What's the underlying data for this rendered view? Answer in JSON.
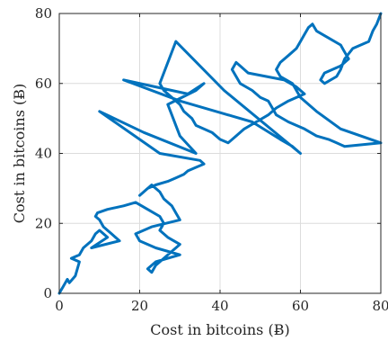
{
  "chart_data": {
    "type": "line",
    "xlabel": "Cost in bitcoins (Ƀ)",
    "ylabel": "Cost in bitcoins (Ƀ)",
    "xlim": [
      0,
      80
    ],
    "ylim": [
      0,
      80
    ],
    "xticks": [
      "0",
      "20",
      "40",
      "60",
      "80"
    ],
    "yticks": [
      "0",
      "20",
      "40",
      "60",
      "80"
    ],
    "grid": true,
    "series": [
      {
        "color": "#0072bd",
        "x": [
          0,
          0.5,
          1,
          2,
          2.5,
          4,
          5,
          3,
          5,
          6,
          8,
          9,
          10,
          12,
          8,
          15,
          13,
          11,
          10,
          9,
          9.5,
          12,
          16,
          19,
          22,
          25,
          26,
          25,
          27,
          30,
          28,
          26,
          24,
          23,
          22,
          24,
          27,
          30,
          24,
          20,
          19,
          23,
          30,
          29,
          28,
          26,
          25,
          23,
          20,
          21,
          22,
          24,
          27,
          29,
          31,
          32,
          34,
          36,
          35,
          25,
          10,
          21,
          34,
          30,
          29,
          28,
          27,
          34,
          36,
          32,
          16,
          30,
          48,
          55,
          58,
          60,
          41,
          29,
          25,
          26,
          30,
          31,
          33,
          34,
          38,
          40,
          42,
          44,
          46,
          49,
          52,
          54,
          57,
          61,
          59,
          56,
          47,
          45,
          44,
          43,
          44,
          45,
          48,
          50,
          52,
          53,
          54,
          57,
          61,
          64,
          67,
          69,
          71,
          80,
          70,
          64,
          60,
          58,
          55,
          54,
          55,
          57,
          59,
          60,
          61,
          62,
          63,
          64,
          67,
          70,
          71,
          72,
          70,
          66,
          65,
          66,
          69,
          70,
          71,
          73,
          77,
          78,
          79,
          80
        ],
        "y": [
          0,
          1,
          2,
          4,
          3,
          5,
          9,
          10,
          11,
          13,
          15,
          17,
          18,
          16,
          13,
          15,
          17,
          19,
          21,
          22,
          23,
          24,
          25,
          26,
          24,
          22,
          20,
          18,
          16,
          14,
          12,
          10,
          8,
          6,
          7,
          9,
          10,
          11,
          13,
          15,
          17,
          19,
          21,
          23,
          25,
          27,
          29,
          31,
          28,
          29,
          30,
          31,
          32,
          33,
          34,
          35,
          36,
          37,
          38,
          40,
          52,
          46,
          40,
          45,
          48,
          51,
          54,
          58,
          60,
          57,
          61,
          55,
          49,
          44,
          42,
          40,
          58,
          72,
          60,
          58,
          54,
          52,
          50,
          48,
          46,
          44,
          43,
          45,
          47,
          49,
          51,
          53,
          55,
          57,
          59,
          61,
          63,
          65,
          66,
          64,
          62,
          60,
          58,
          56,
          55,
          53,
          51,
          49,
          47,
          45,
          44,
          43,
          42,
          43,
          47,
          52,
          56,
          60,
          62,
          64,
          66,
          68,
          70,
          72,
          74,
          76,
          77,
          75,
          73,
          71,
          69,
          67,
          65,
          63,
          61,
          60,
          62,
          64,
          67,
          70,
          72,
          75,
          77,
          80
        ]
      }
    ]
  }
}
